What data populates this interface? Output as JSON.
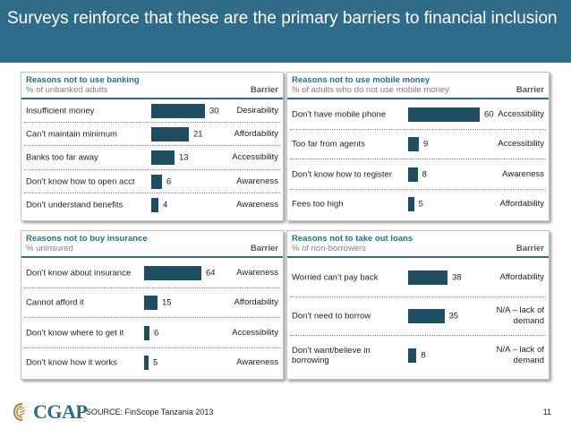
{
  "header": {
    "title": "Surveys reinforce that these are the primary barriers to financial inclusion"
  },
  "barrier_header": "Barrier",
  "colors": {
    "accent": "#2e6c8a",
    "bar": "#1f4e63"
  },
  "chart_data": [
    {
      "type": "bar",
      "orientation": "horizontal",
      "title": "Reasons not to use banking",
      "subtitle": "% of unbanked adults",
      "categories": [
        "Insufficient money",
        "Can’t maintain minimum",
        "Banks too far away",
        "Don’t know how to open acct",
        "Don’t understand benefits"
      ],
      "values": [
        30,
        21,
        13,
        6,
        4
      ],
      "barriers": [
        "Desirability",
        "Affordability",
        "Accessibility",
        "Awareness",
        "Awareness"
      ]
    },
    {
      "type": "bar",
      "orientation": "horizontal",
      "title": "Reasons not to use mobile money",
      "subtitle": "% of adults who do not use mobile money",
      "categories": [
        "Don’t have mobile phone",
        "Too far from agents",
        "Don’t know how to register",
        "Fees too high"
      ],
      "values": [
        60,
        9,
        8,
        5
      ],
      "barriers": [
        "Accessibility",
        "Accessibility",
        "Awareness",
        "Affordability"
      ]
    },
    {
      "type": "bar",
      "orientation": "horizontal",
      "title": "Reasons not to buy insurance",
      "subtitle": "% uninsured",
      "categories": [
        "Don’t know about insurance",
        "Cannot afford it",
        "Don’t know where to get it",
        "Don’t know how it works"
      ],
      "values": [
        64,
        15,
        6,
        5
      ],
      "barriers": [
        "Awareness",
        "Affordability",
        "Accessibility",
        "Awareness"
      ]
    },
    {
      "type": "bar",
      "orientation": "horizontal",
      "title": "Reasons not to take out loans",
      "subtitle": "% of non-borrowers",
      "categories": [
        "Worried can’t pay back",
        "Don’t need to borrow",
        "Don’t want/believe in borrowing"
      ],
      "values": [
        38,
        35,
        8
      ],
      "barriers": [
        "Affordability",
        "N/A – lack of demand",
        "N/A – lack of demand"
      ]
    }
  ],
  "footer": {
    "logo_text": "CGAP",
    "source": "SOURCE: FinScope Tanzania 2013",
    "page_number": "11"
  }
}
